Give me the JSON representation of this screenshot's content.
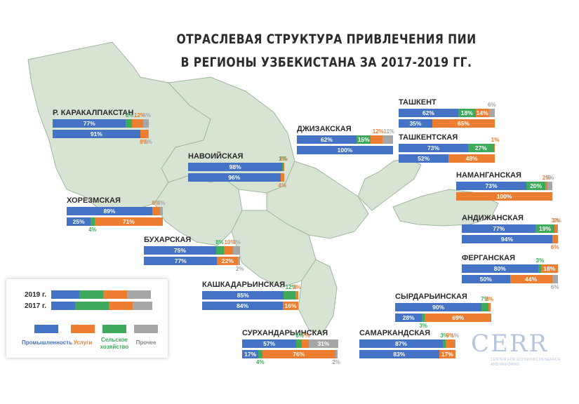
{
  "title": {
    "line1": "ОТРАСЛЕВАЯ СТРУКТУРА ПРИВЛЕЧЕНИЯ ПИИ",
    "line2": "В РЕГИОНЫ УЗБЕКИСТАНА ЗА 2017-2019 ГГ."
  },
  "colors": {
    "industry": "#4472c4",
    "services": "#ed7d31",
    "agriculture": "#3daa5c",
    "other": "#a6a6a6",
    "map_fill": "#d7e4d3",
    "map_stroke": "#9fb79c"
  },
  "legend": {
    "row_2019": "2019 г.",
    "row_2017": "2017 г.",
    "items": [
      {
        "key": "industry",
        "label": "Промышленность"
      },
      {
        "key": "services",
        "label": "Услуги"
      },
      {
        "key": "agriculture",
        "label": "Сельское хозяйство"
      },
      {
        "key": "other",
        "label": "Прочее"
      }
    ]
  },
  "logo": {
    "text": "CERR",
    "subtitle": "CENTER FOR ECONOMIC RESEARCH AND REFORMS"
  },
  "chart_data": {
    "type": "bar",
    "stacked": true,
    "orientation": "horizontal",
    "unit": "%",
    "categories": [
      "Промышленность",
      "Услуги",
      "Сельское хозяйство",
      "Прочее"
    ],
    "regions": [
      {
        "name": "Р. КАРАКАЛПАКСТАН",
        "y2019": [
          77,
          12,
          6,
          6
        ],
        "y2017": [
          91,
          8,
          0,
          1
        ]
      },
      {
        "name": "НАВОИЙСКАЯ",
        "y2019": [
          98,
          1,
          1,
          0
        ],
        "y2017": [
          96,
          4,
          0,
          0
        ]
      },
      {
        "name": "ДЖИЗАКСКАЯ",
        "y2019": [
          62,
          12,
          15,
          11
        ],
        "y2017": [
          100,
          0,
          0,
          0
        ]
      },
      {
        "name": "ТАШКЕНТ",
        "y2019": [
          62,
          14,
          18,
          6
        ],
        "y2017": [
          35,
          65,
          0,
          0
        ]
      },
      {
        "name": "ТАШКЕНТСКАЯ",
        "y2019": [
          73,
          1,
          27,
          0
        ],
        "y2017": [
          52,
          48,
          0,
          0
        ]
      },
      {
        "name": "НАМАНГАНСКАЯ",
        "y2019": [
          73,
          2,
          20,
          5
        ],
        "y2017": [
          0,
          100,
          0,
          0
        ]
      },
      {
        "name": "ХОРЕЗМСКАЯ",
        "y2019": [
          89,
          8,
          0,
          3
        ],
        "y2017": [
          25,
          71,
          4,
          0
        ]
      },
      {
        "name": "АНДИЖАНСКАЯ",
        "y2019": [
          77,
          3,
          19,
          1
        ],
        "y2017": [
          94,
          6,
          0,
          0
        ]
      },
      {
        "name": "БУХАРСКАЯ",
        "y2019": [
          75,
          10,
          8,
          7
        ],
        "y2017": [
          77,
          22,
          0,
          2
        ]
      },
      {
        "name": "ФЕРГАНСКАЯ",
        "y2019": [
          80,
          18,
          3,
          0
        ],
        "y2017": [
          50,
          44,
          0,
          6
        ]
      },
      {
        "name": "КАШКАДАРЬИНСКАЯ",
        "y2019": [
          85,
          3,
          12,
          0
        ],
        "y2017": [
          84,
          16,
          0,
          0
        ]
      },
      {
        "name": "СЫРДАРЬИНСКАЯ",
        "y2019": [
          90,
          2,
          7,
          0
        ],
        "y2017": [
          28,
          69,
          3,
          0
        ]
      },
      {
        "name": "СУРХАНДАРЬИНСКАЯ",
        "y2019": [
          57,
          7,
          6,
          31
        ],
        "y2017": [
          17,
          76,
          4,
          2
        ]
      },
      {
        "name": "САМАРКАНДСКАЯ",
        "y2019": [
          87,
          9,
          3,
          1
        ],
        "y2017": [
          83,
          17,
          0,
          0
        ]
      }
    ]
  }
}
